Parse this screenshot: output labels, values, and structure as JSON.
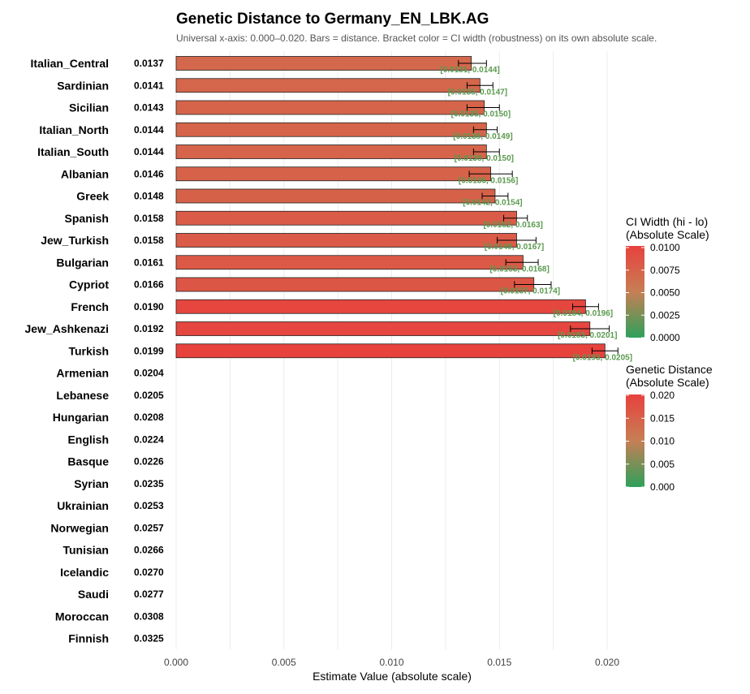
{
  "chart_data": {
    "type": "bar",
    "orientation": "horizontal",
    "title": "Genetic Distance to Germany_EN_LBK.AG",
    "subtitle": "Universal x-axis: 0.000–0.020. Bars = distance. Bracket color = CI width (robustness) on its own absolute scale.",
    "xlabel": "Estimate Value (absolute scale)",
    "xlim": [
      0,
      0.02
    ],
    "x_ticks": [
      "0.000",
      "0.005",
      "0.010",
      "0.015",
      "0.020"
    ],
    "x_tick_values": [
      0,
      0.005,
      0.01,
      0.015,
      0.02
    ],
    "grid": true,
    "categories": [
      "Italian_Central",
      "Sardinian",
      "Sicilian",
      "Italian_North",
      "Italian_South",
      "Albanian",
      "Greek",
      "Spanish",
      "Jew_Turkish",
      "Bulgarian",
      "Cypriot",
      "French",
      "Jew_Ashkenazi",
      "Turkish",
      "Armenian",
      "Lebanese",
      "Hungarian",
      "English",
      "Basque",
      "Syrian",
      "Ukrainian",
      "Norwegian",
      "Tunisian",
      "Icelandic",
      "Saudi",
      "Moroccan",
      "Finnish"
    ],
    "values": [
      0.0137,
      0.0141,
      0.0143,
      0.0144,
      0.0144,
      0.0146,
      0.0148,
      0.0158,
      0.0158,
      0.0161,
      0.0166,
      0.019,
      0.0192,
      0.0199,
      0.0204,
      0.0205,
      0.0208,
      0.0224,
      0.0226,
      0.0235,
      0.0253,
      0.0257,
      0.0266,
      0.027,
      0.0277,
      0.0308,
      0.0325
    ],
    "value_labels": [
      "0.0137",
      "0.0141",
      "0.0143",
      "0.0144",
      "0.0144",
      "0.0146",
      "0.0148",
      "0.0158",
      "0.0158",
      "0.0161",
      "0.0166",
      "0.0190",
      "0.0192",
      "0.0199",
      "0.0204",
      "0.0205",
      "0.0208",
      "0.0224",
      "0.0226",
      "0.0235",
      "0.0253",
      "0.0257",
      "0.0266",
      "0.0270",
      "0.0277",
      "0.0308",
      "0.0325"
    ],
    "ci_low": [
      0.0131,
      0.0135,
      0.0135,
      0.0138,
      0.0138,
      0.0136,
      0.0142,
      0.0152,
      0.0149,
      0.0153,
      0.0157,
      0.0184,
      0.0183,
      0.0193
    ],
    "ci_high": [
      0.0144,
      0.0147,
      0.015,
      0.0149,
      0.015,
      0.0156,
      0.0154,
      0.0163,
      0.0167,
      0.0168,
      0.0174,
      0.0196,
      0.0201,
      0.0205
    ],
    "ci_labels": [
      "[0.0131, 0.0144]",
      "[0.0135, 0.0147]",
      "[0.0135, 0.0150]",
      "[0.0138, 0.0149]",
      "[0.0138, 0.0150]",
      "[0.0136, 0.0156]",
      "[0.0142, 0.0154]",
      "[0.0152, 0.0163]",
      "[0.0149, 0.0167]",
      "[0.0153, 0.0168]",
      "[0.0157, 0.0174]",
      "[0.0184, 0.0196]",
      "[0.0183, 0.0201]",
      "[0.0193, 0.0205]"
    ],
    "bar_color_low": "#2ea05a",
    "bar_color_mid": "#c67f55",
    "bar_color_high": "#e8413d",
    "legends": [
      {
        "title_lines": [
          "CI Width (hi - lo)",
          "(Absolute Scale)"
        ],
        "ticks": [
          "0.0100",
          "0.0075",
          "0.0050",
          "0.0025",
          "0.0000"
        ],
        "colors": [
          "#e8413d",
          "#c67f55",
          "#2ea05a"
        ]
      },
      {
        "title_lines": [
          "Genetic Distance",
          "(Absolute Scale)"
        ],
        "ticks": [
          "0.020",
          "0.015",
          "0.010",
          "0.005",
          "0.000"
        ],
        "colors": [
          "#e8413d",
          "#c67f55",
          "#2ea05a"
        ]
      }
    ],
    "legend_placement": "right"
  }
}
